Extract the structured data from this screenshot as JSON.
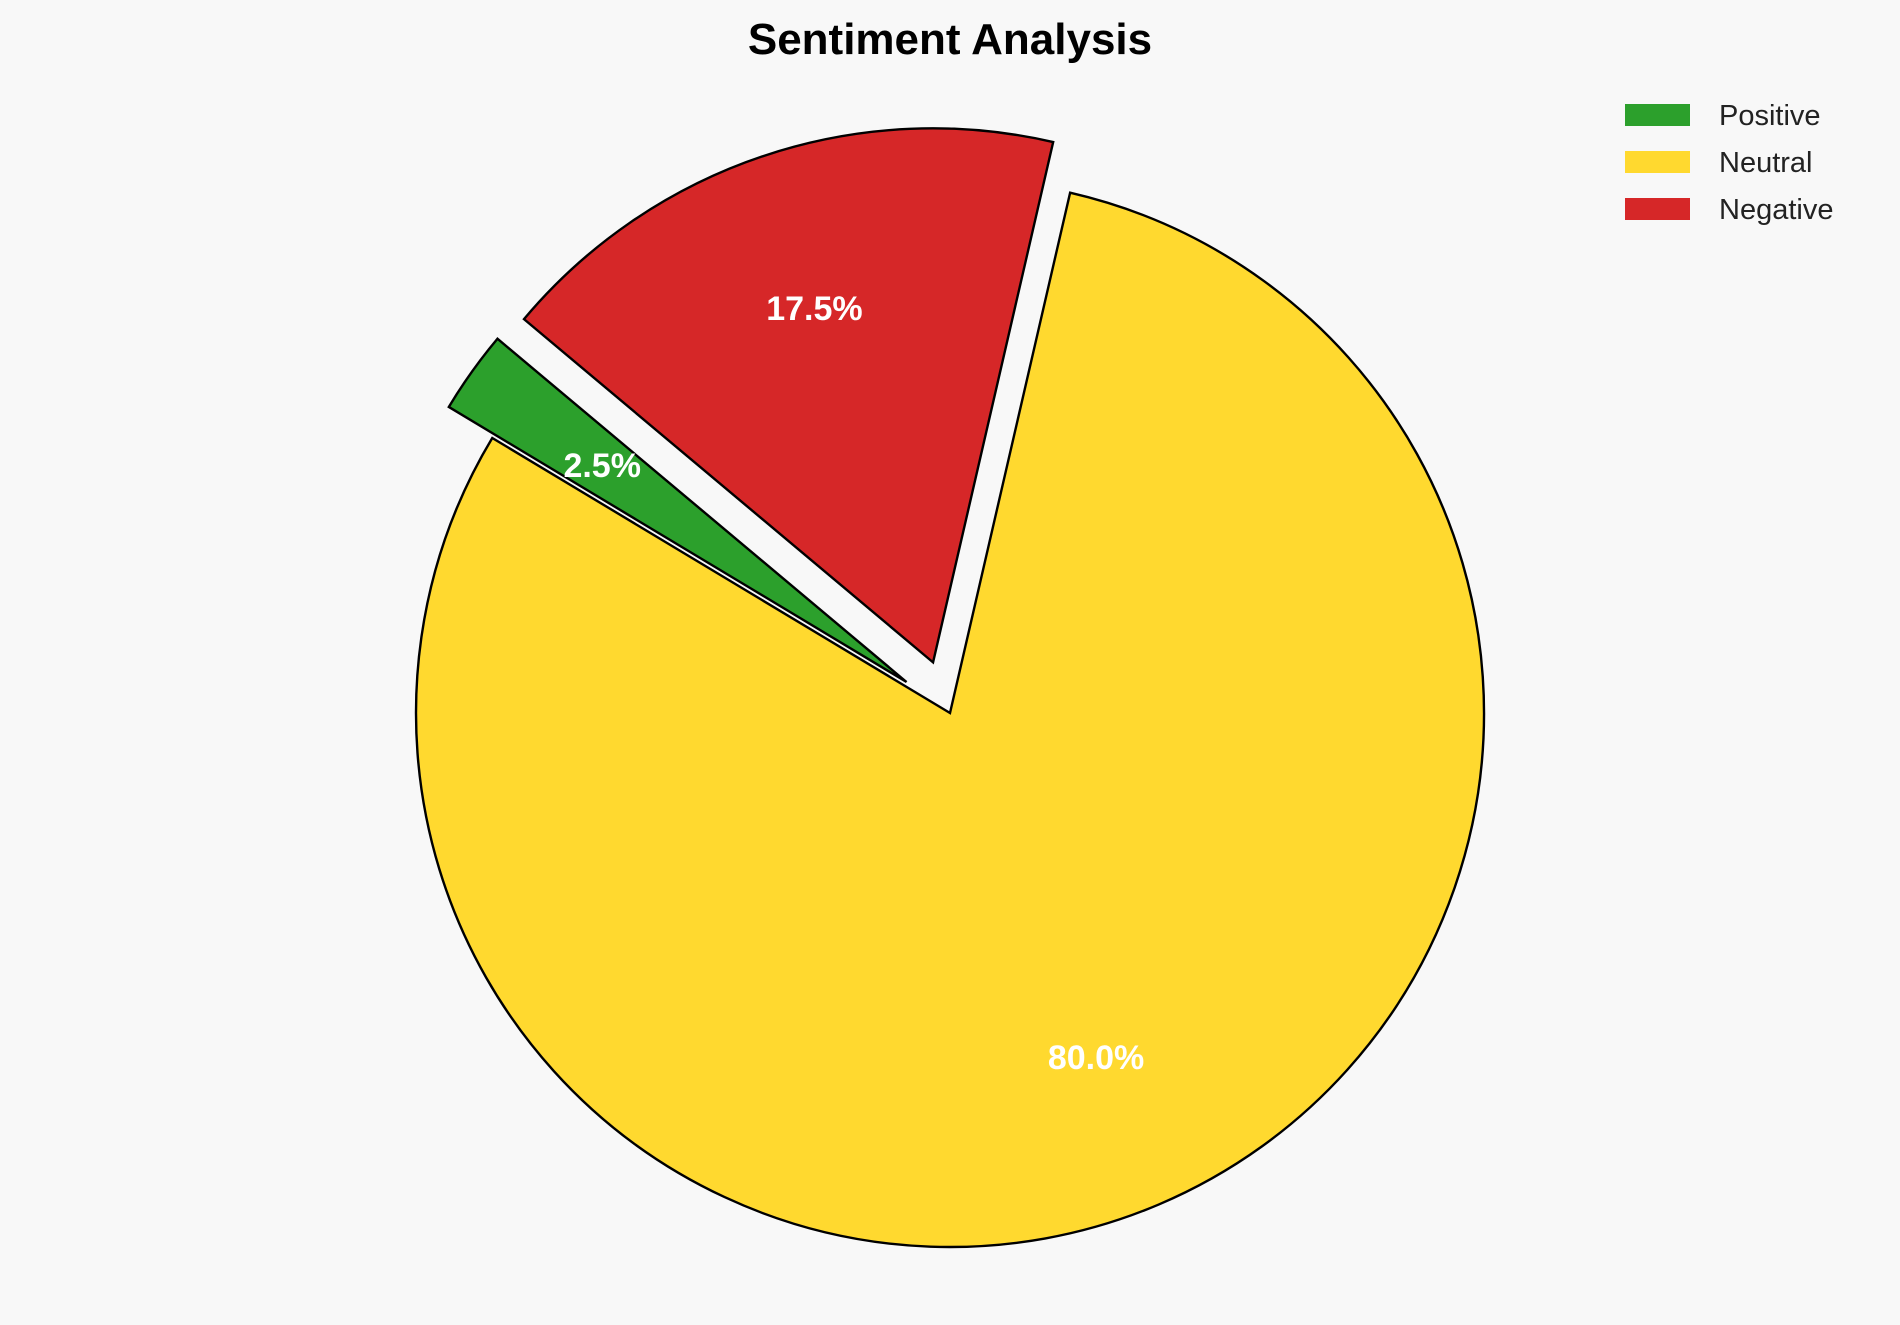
{
  "chart_data": {
    "type": "pie",
    "title": "Sentiment Analysis",
    "labels": [
      "Positive",
      "Neutral",
      "Negative"
    ],
    "values": [
      2.5,
      80.0,
      17.5
    ],
    "pct_labels": [
      "2.5%",
      "80.0%",
      "17.5%"
    ],
    "colors": [
      "#2ca02c",
      "#ffd92f",
      "#d62728"
    ],
    "explode": [
      0.1,
      0,
      0.1
    ],
    "start_angle": 140,
    "edge_color": "#000000",
    "legend_placement": "top-right",
    "background": "#f8f8f8"
  }
}
